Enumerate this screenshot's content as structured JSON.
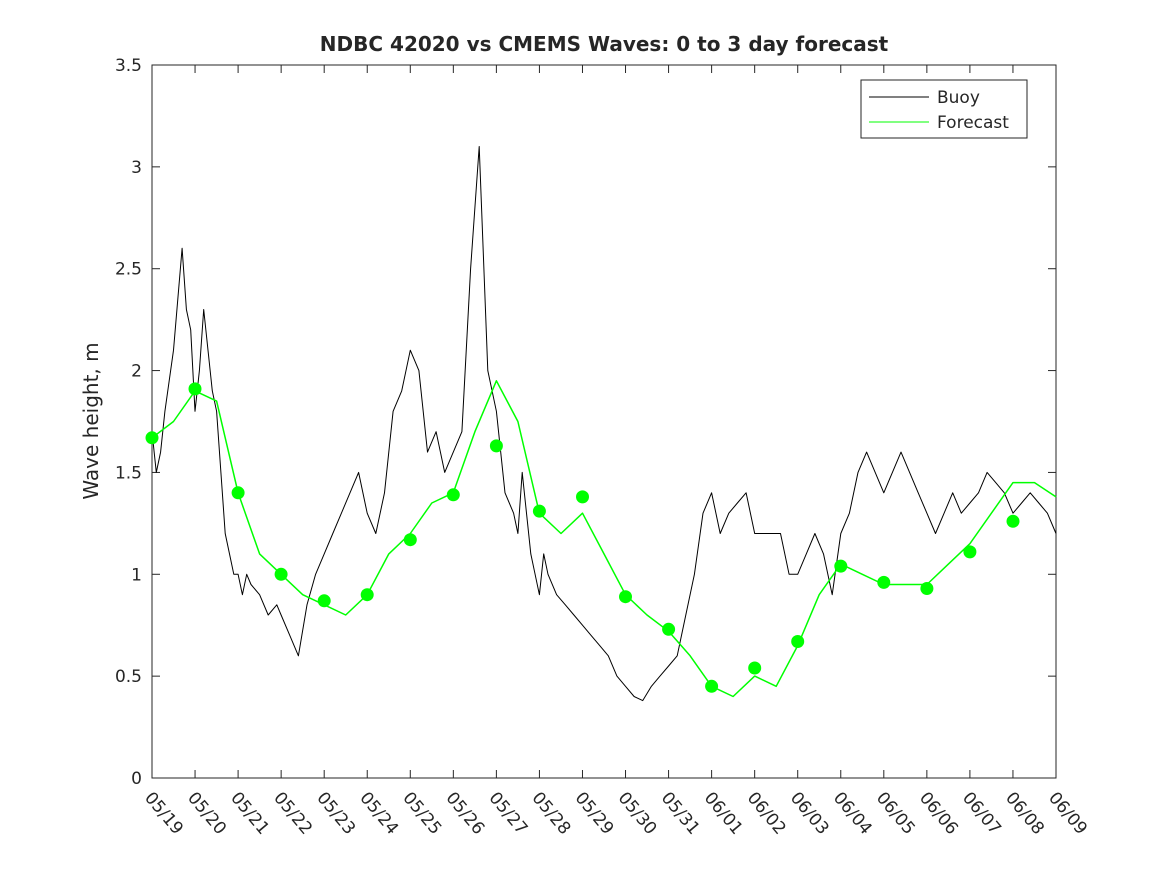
{
  "chart_data": {
    "type": "line",
    "title": "NDBC 42020 vs CMEMS Waves: 0 to 3 day forecast",
    "xlabel": "",
    "ylabel": "Wave height, m",
    "xlim": [
      0,
      21
    ],
    "ylim": [
      0,
      3.5
    ],
    "x_unit": "days since 05/19",
    "x_tick_values": [
      0,
      1,
      2,
      3,
      4,
      5,
      6,
      7,
      8,
      9,
      10,
      11,
      12,
      13,
      14,
      15,
      16,
      17,
      18,
      19,
      20,
      21
    ],
    "x_tick_labels": [
      "05/19",
      "05/20",
      "05/21",
      "05/22",
      "05/23",
      "05/24",
      "05/25",
      "05/26",
      "05/27",
      "05/28",
      "05/29",
      "05/30",
      "05/31",
      "06/01",
      "06/02",
      "06/03",
      "06/04",
      "06/05",
      "06/06",
      "06/07",
      "06/08",
      "06/09"
    ],
    "y_tick_values": [
      0,
      0.5,
      1,
      1.5,
      2,
      2.5,
      3,
      3.5
    ],
    "y_tick_labels": [
      "0",
      "0.5",
      "1",
      "1.5",
      "2",
      "2.5",
      "3",
      "3.5"
    ],
    "grid": false,
    "legend_position": "top-right",
    "colors": {
      "buoy": "#000000",
      "forecast": "#00ff00",
      "axis": "#262626"
    },
    "series": [
      {
        "name": "Buoy",
        "x": [
          0,
          0.1,
          0.2,
          0.3,
          0.5,
          0.7,
          0.8,
          0.9,
          1.0,
          1.1,
          1.2,
          1.3,
          1.4,
          1.5,
          1.6,
          1.7,
          1.8,
          1.9,
          2.0,
          2.1,
          2.2,
          2.3,
          2.5,
          2.7,
          2.9,
          3.0,
          3.2,
          3.4,
          3.6,
          3.8,
          4.0,
          4.2,
          4.4,
          4.6,
          4.8,
          5.0,
          5.2,
          5.4,
          5.6,
          5.8,
          6.0,
          6.2,
          6.4,
          6.6,
          6.8,
          7.0,
          7.2,
          7.4,
          7.6,
          7.8,
          8.0,
          8.2,
          8.4,
          8.5,
          8.6,
          8.7,
          8.8,
          8.9,
          9.0,
          9.1,
          9.2,
          9.4,
          9.6,
          9.8,
          10.0,
          10.2,
          10.4,
          10.6,
          10.8,
          11.0,
          11.2,
          11.4,
          11.6,
          11.8,
          12.0,
          12.2,
          12.4,
          12.6,
          12.8,
          13.0,
          13.2,
          13.4,
          13.6,
          13.8,
          14.0,
          14.2,
          14.4,
          14.6,
          14.8,
          15.0,
          15.2,
          15.4,
          15.6,
          15.8,
          16.0,
          16.2,
          16.4,
          16.6,
          16.8,
          17.0,
          17.2,
          17.4,
          17.6,
          17.8,
          18.0,
          18.2,
          18.4,
          18.6,
          18.8,
          19.0,
          19.2,
          19.4,
          19.6,
          19.8,
          20.0,
          20.2,
          20.4,
          20.6,
          20.8,
          21.0
        ],
        "y": [
          1.7,
          1.5,
          1.6,
          1.8,
          2.1,
          2.6,
          2.3,
          2.2,
          1.8,
          2.0,
          2.3,
          2.1,
          1.9,
          1.8,
          1.5,
          1.2,
          1.1,
          1.0,
          1.0,
          0.9,
          1.0,
          0.95,
          0.9,
          0.8,
          0.85,
          0.8,
          0.7,
          0.6,
          0.85,
          1.0,
          1.1,
          1.2,
          1.3,
          1.4,
          1.5,
          1.3,
          1.2,
          1.4,
          1.8,
          1.9,
          2.1,
          2.0,
          1.6,
          1.7,
          1.5,
          1.6,
          1.7,
          2.5,
          3.1,
          2.0,
          1.8,
          1.4,
          1.3,
          1.2,
          1.5,
          1.3,
          1.1,
          1.0,
          0.9,
          1.1,
          1.0,
          0.9,
          0.85,
          0.8,
          0.75,
          0.7,
          0.65,
          0.6,
          0.5,
          0.45,
          0.4,
          0.38,
          0.45,
          0.5,
          0.55,
          0.6,
          0.8,
          1.0,
          1.3,
          1.4,
          1.2,
          1.3,
          1.35,
          1.4,
          1.2,
          1.2,
          1.2,
          1.2,
          1.0,
          1.0,
          1.1,
          1.2,
          1.1,
          0.9,
          1.2,
          1.3,
          1.5,
          1.6,
          1.5,
          1.4,
          1.5,
          1.6,
          1.5,
          1.4,
          1.3,
          1.2,
          1.3,
          1.4,
          1.3,
          1.35,
          1.4,
          1.5,
          1.45,
          1.4,
          1.3,
          1.35,
          1.4,
          1.35,
          1.3,
          1.2
        ]
      },
      {
        "name": "Forecast",
        "x": [
          0,
          0.5,
          1.0,
          1.5,
          2.0,
          2.5,
          3.0,
          3.5,
          4.0,
          4.5,
          5.0,
          5.5,
          6.0,
          6.5,
          7.0,
          7.5,
          8.0,
          8.5,
          9.0,
          9.5,
          10.0,
          10.5,
          11.0,
          11.5,
          12.0,
          12.5,
          13.0,
          13.5,
          14.0,
          14.5,
          15.0,
          15.5,
          16.0,
          16.5,
          17.0,
          17.5,
          18.0,
          18.5,
          19.0,
          19.5,
          20.0,
          20.5,
          21.0
        ],
        "y": [
          1.67,
          1.75,
          1.9,
          1.85,
          1.4,
          1.1,
          1.0,
          0.9,
          0.85,
          0.8,
          0.9,
          1.1,
          1.2,
          1.35,
          1.4,
          1.7,
          1.95,
          1.75,
          1.3,
          1.2,
          1.3,
          1.1,
          0.9,
          0.8,
          0.72,
          0.6,
          0.45,
          0.4,
          0.5,
          0.45,
          0.65,
          0.9,
          1.05,
          1.0,
          0.95,
          0.95,
          0.95,
          1.05,
          1.15,
          1.3,
          1.45,
          1.45,
          1.38
        ]
      }
    ],
    "forecast_markers": {
      "x": [
        0,
        1,
        2,
        3,
        4,
        5,
        6,
        7,
        8,
        9,
        10,
        11,
        12,
        13,
        14,
        15,
        16,
        17,
        18,
        19,
        20
      ],
      "y": [
        1.67,
        1.91,
        1.4,
        1.0,
        0.87,
        0.9,
        1.17,
        1.39,
        1.63,
        1.31,
        1.38,
        0.89,
        0.73,
        0.45,
        0.54,
        0.67,
        1.04,
        0.96,
        0.93,
        1.11,
        1.26
      ]
    }
  }
}
